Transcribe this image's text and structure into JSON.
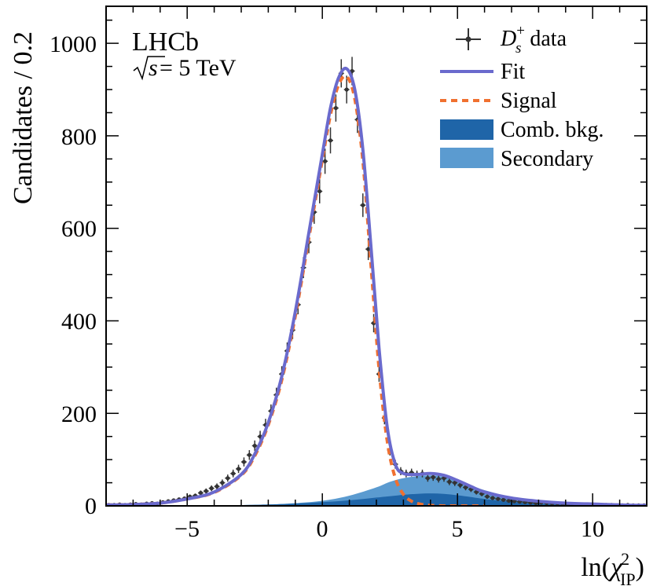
{
  "chart_data": {
    "type": "histogram-fit",
    "title": "",
    "experiment_label": "LHCb",
    "energy_label": {
      "sqrt": "s",
      "rest": " = 5 TeV"
    },
    "xlabel": {
      "main": "ln(",
      "chi": "χ",
      "sup": "2",
      "sub": "IP",
      "close": ")"
    },
    "ylabel": "Candidates / 0.2",
    "xlim": [
      -8,
      12
    ],
    "ylim": [
      0,
      1080
    ],
    "xticks": [
      -5,
      0,
      5,
      10
    ],
    "xtick_labels": [
      "−5",
      "0",
      "5",
      "10"
    ],
    "yticks": [
      0,
      200,
      400,
      600,
      800,
      1000
    ],
    "ytick_labels": [
      "0",
      "200",
      "400",
      "600",
      "800",
      "1000"
    ],
    "legend": {
      "data": {
        "main": "D",
        "sub": "s",
        "sup": "+",
        "rest": " data"
      },
      "fit": "Fit",
      "signal": "Signal",
      "comb": "Comb. bkg.",
      "secondary": "Secondary"
    },
    "colors": {
      "fit": "#6a6acd",
      "signal": "#f07030",
      "comb": "#1f65a8",
      "secondary": "#5b9bd0",
      "data": "#333333"
    },
    "fit_curve": {
      "x": [
        -8,
        -7,
        -6,
        -5,
        -4,
        -3,
        -2.5,
        -2,
        -1.5,
        -1,
        -0.5,
        0,
        0.3,
        0.6,
        0.9,
        1.2,
        1.5,
        1.8,
        2.1,
        2.4,
        2.7,
        3.0,
        3.5,
        4.0,
        4.5,
        5.0,
        5.5,
        6.0,
        7.0,
        8.0,
        9.0,
        10.0,
        11.0,
        12.0
      ],
      "y": [
        2,
        3,
        6,
        15,
        30,
        68,
        112,
        180,
        280,
        420,
        590,
        760,
        860,
        925,
        945,
        900,
        770,
        560,
        340,
        170,
        90,
        70,
        68,
        70,
        66,
        55,
        42,
        30,
        17,
        10,
        6,
        4,
        2,
        1
      ]
    },
    "signal_curve": {
      "x": [
        -8,
        -7,
        -6,
        -5,
        -4,
        -3,
        -2.5,
        -2,
        -1.5,
        -1,
        -0.5,
        0,
        0.3,
        0.6,
        0.9,
        1.2,
        1.5,
        1.8,
        2.1,
        2.4,
        2.7,
        3.0,
        3.3,
        3.6,
        4.0,
        4.5,
        5.0,
        6.0
      ],
      "y": [
        2,
        3,
        6,
        15,
        29,
        66,
        108,
        175,
        272,
        410,
        578,
        748,
        845,
        910,
        928,
        880,
        745,
        520,
        295,
        140,
        60,
        25,
        10,
        4,
        1,
        0,
        0,
        0
      ]
    },
    "comb_curve": {
      "x": [
        -8,
        -4,
        -2,
        -1,
        0,
        1,
        2,
        3,
        3.5,
        4,
        4.5,
        5,
        5.5,
        6,
        7,
        8,
        9,
        10,
        12
      ],
      "y": [
        0,
        1,
        3,
        5,
        8,
        12,
        18,
        24,
        26,
        27,
        26,
        23,
        19,
        15,
        9,
        5,
        3,
        1.5,
        0.5
      ]
    },
    "secondary_curve": {
      "x": [
        -8,
        -4,
        -2,
        -1,
        0,
        1,
        2,
        2.5,
        3,
        3.5,
        4,
        4.5,
        5,
        5.5,
        6,
        6.5,
        7,
        8,
        9,
        10,
        12
      ],
      "y": [
        0,
        1,
        3,
        6,
        11,
        22,
        40,
        52,
        60,
        64,
        66,
        63,
        55,
        44,
        34,
        26,
        19,
        10,
        6,
        3,
        1
      ]
    },
    "data_points": {
      "x": [
        -7.9,
        -7.7,
        -7.5,
        -7.3,
        -7.1,
        -6.9,
        -6.7,
        -6.5,
        -6.3,
        -6.1,
        -5.9,
        -5.7,
        -5.5,
        -5.3,
        -5.1,
        -4.9,
        -4.7,
        -4.5,
        -4.3,
        -4.1,
        -3.9,
        -3.7,
        -3.5,
        -3.3,
        -3.1,
        -2.9,
        -2.7,
        -2.5,
        -2.3,
        -2.1,
        -1.9,
        -1.7,
        -1.5,
        -1.3,
        -1.1,
        -0.9,
        -0.7,
        -0.5,
        -0.3,
        -0.1,
        0.1,
        0.3,
        0.5,
        0.7,
        0.9,
        1.1,
        1.3,
        1.5,
        1.7,
        1.9,
        2.1,
        2.3,
        2.5,
        2.7,
        2.9,
        3.1,
        3.3,
        3.5,
        3.7,
        3.9,
        4.1,
        4.3,
        4.5,
        4.7,
        4.9,
        5.1,
        5.3,
        5.5,
        5.7,
        5.9,
        6.1,
        6.3,
        6.5,
        6.7,
        6.9,
        7.1,
        7.3,
        7.5,
        7.7,
        7.9,
        8.1,
        8.3,
        8.5,
        8.7,
        8.9,
        9.1,
        9.3,
        9.5,
        9.7,
        9.9,
        10.1,
        10.3,
        10.5,
        10.7,
        10.9,
        11.1,
        11.3,
        11.5,
        11.7,
        11.9
      ],
      "y": [
        2,
        2,
        3,
        2,
        3,
        4,
        3,
        5,
        6,
        5,
        8,
        10,
        12,
        14,
        16,
        20,
        22,
        28,
        32,
        38,
        42,
        50,
        60,
        70,
        80,
        95,
        110,
        130,
        150,
        175,
        205,
        240,
        285,
        335,
        380,
        435,
        515,
        570,
        635,
        680,
        745,
        790,
        860,
        935,
        900,
        940,
        835,
        650,
        555,
        395,
        285,
        190,
        120,
        90,
        75,
        70,
        72,
        68,
        70,
        60,
        62,
        58,
        60,
        52,
        50,
        45,
        40,
        36,
        30,
        26,
        20,
        17,
        15,
        13,
        11,
        10,
        9,
        8,
        7,
        6,
        7,
        6,
        5,
        5,
        4,
        4,
        3,
        3,
        3,
        2,
        2,
        2,
        2,
        2,
        1,
        1,
        2,
        1,
        1,
        1
      ]
    }
  }
}
